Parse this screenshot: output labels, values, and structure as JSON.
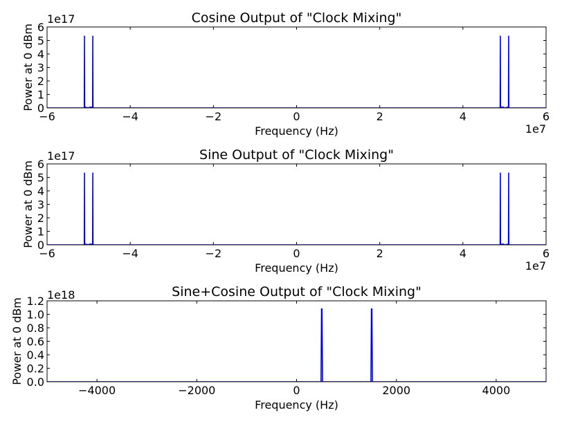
{
  "chart_data": [
    {
      "type": "line",
      "title": "Cosine Output of \"Clock Mixing\"",
      "xlabel": "Frequency (Hz)",
      "ylabel": "Power at 0 dBm",
      "x_offset_text": "1e7",
      "y_offset_text": "1e17",
      "xlim": [
        -6,
        6
      ],
      "ylim": [
        0,
        6
      ],
      "xticks": [
        -6,
        -4,
        -2,
        0,
        2,
        4,
        6
      ],
      "xtick_labels": [
        "−6",
        "−4",
        "−2",
        "0",
        "2",
        "4",
        "6"
      ],
      "yticks": [
        0,
        1,
        2,
        3,
        4,
        5,
        6
      ],
      "ytick_labels": [
        "0",
        "1",
        "2",
        "3",
        "4",
        "5",
        "6"
      ],
      "grid": false,
      "color": "#0000ff",
      "series": [
        {
          "x": [
            -6,
            -5.12,
            -5.105,
            -5.1,
            -5.095,
            -5.08,
            -5.0,
            -4.98,
            -4.92,
            -4.905,
            -4.9,
            -4.895,
            -4.88,
            4.88,
            4.895,
            4.9,
            4.905,
            4.92,
            4.98,
            5.0,
            5.08,
            5.095,
            5.1,
            5.105,
            5.12,
            6
          ],
          "y": [
            0,
            0,
            0.05,
            5.35,
            0.05,
            0.05,
            0.0,
            0.05,
            0.05,
            0.05,
            5.35,
            0.05,
            0,
            0,
            0.05,
            5.35,
            0.05,
            0.05,
            0.05,
            0.0,
            0.05,
            0.05,
            5.35,
            0.05,
            0,
            0
          ]
        }
      ]
    },
    {
      "type": "line",
      "title": "Sine Output of \"Clock Mixing\"",
      "xlabel": "Frequency (Hz)",
      "ylabel": "Power at 0 dBm",
      "x_offset_text": "1e7",
      "y_offset_text": "1e17",
      "xlim": [
        -6,
        6
      ],
      "ylim": [
        0,
        6
      ],
      "xticks": [
        -6,
        -4,
        -2,
        0,
        2,
        4,
        6
      ],
      "xtick_labels": [
        "−6",
        "−4",
        "−2",
        "0",
        "2",
        "4",
        "6"
      ],
      "yticks": [
        0,
        1,
        2,
        3,
        4,
        5,
        6
      ],
      "ytick_labels": [
        "0",
        "1",
        "2",
        "3",
        "4",
        "5",
        "6"
      ],
      "grid": false,
      "color": "#0000ff",
      "series": [
        {
          "x": [
            -6,
            -5.12,
            -5.105,
            -5.1,
            -5.095,
            -5.08,
            -5.0,
            -4.98,
            -4.92,
            -4.905,
            -4.9,
            -4.895,
            -4.88,
            4.88,
            4.895,
            4.9,
            4.905,
            4.92,
            4.98,
            5.0,
            5.08,
            5.095,
            5.1,
            5.105,
            5.12,
            6
          ],
          "y": [
            0,
            0,
            0.05,
            5.35,
            0.05,
            0.05,
            0.0,
            0.05,
            0.05,
            0.05,
            5.35,
            0.05,
            0,
            0,
            0.05,
            5.35,
            0.05,
            0.05,
            0.05,
            0.0,
            0.05,
            0.05,
            5.35,
            0.05,
            0,
            0
          ]
        }
      ]
    },
    {
      "type": "line",
      "title": "Sine+Cosine Output of \"Clock Mixing\"",
      "xlabel": "Frequency (Hz)",
      "ylabel": "Power at 0 dBm",
      "x_offset_text": "",
      "y_offset_text": "1e18",
      "xlim": [
        -5000,
        5000
      ],
      "ylim": [
        0,
        1.2
      ],
      "xticks": [
        -4000,
        -2000,
        0,
        2000,
        4000
      ],
      "xtick_labels": [
        "−4000",
        "−2000",
        "0",
        "2000",
        "4000"
      ],
      "yticks": [
        0,
        0.2,
        0.4,
        0.6,
        0.8,
        1.0,
        1.2
      ],
      "ytick_labels": [
        "0.0",
        "0.2",
        "0.4",
        "0.6",
        "0.8",
        "1.0",
        "1.2"
      ],
      "grid": false,
      "color": "#0000ff",
      "series": [
        {
          "x": [
            -5000,
            490,
            500,
            510,
            520,
            1490,
            1500,
            1510,
            1520,
            5000
          ],
          "y": [
            0,
            0,
            1.08,
            1.08,
            0,
            0,
            1.08,
            1.08,
            0,
            0
          ]
        }
      ]
    }
  ]
}
